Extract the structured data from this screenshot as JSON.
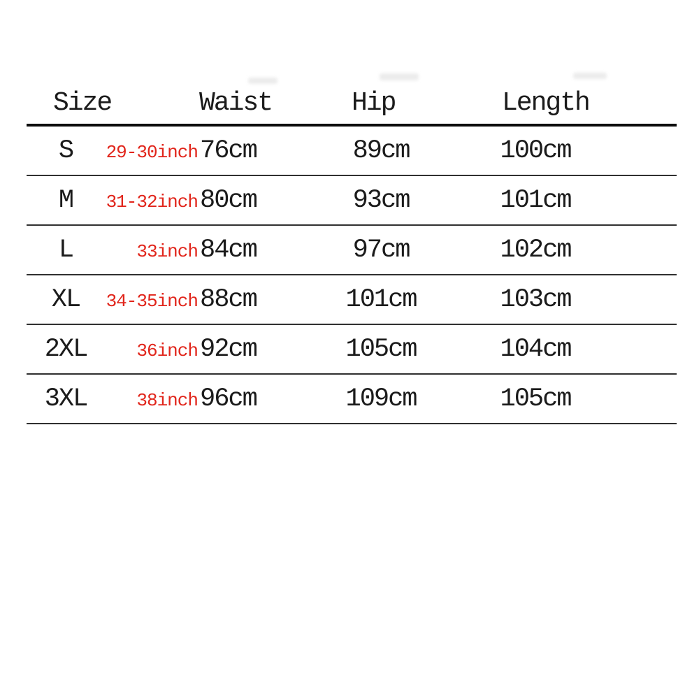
{
  "chart_data": {
    "type": "table",
    "title": "",
    "columns": [
      "Size",
      "Waist",
      "Hip",
      "Length"
    ],
    "rows": [
      {
        "size": "S",
        "waist_inch": "29-30inch",
        "waist_cm": "76cm",
        "hip": "89cm",
        "length": "100cm"
      },
      {
        "size": "M",
        "waist_inch": "31-32inch",
        "waist_cm": "80cm",
        "hip": "93cm",
        "length": "101cm"
      },
      {
        "size": "L",
        "waist_inch": "33inch",
        "waist_cm": "84cm",
        "hip": "97cm",
        "length": "102cm"
      },
      {
        "size": "XL",
        "waist_inch": "34-35inch",
        "waist_cm": "88cm",
        "hip": "101cm",
        "length": "103cm"
      },
      {
        "size": "2XL",
        "waist_inch": "36inch",
        "waist_cm": "92cm",
        "hip": "105cm",
        "length": "104cm"
      },
      {
        "size": "3XL",
        "waist_inch": "38inch",
        "waist_cm": "96cm",
        "hip": "109cm",
        "length": "105cm"
      }
    ],
    "colors": {
      "inch_text": "#e1251b",
      "body_text": "#1b1b1b",
      "header_rule": "#0d0d0d",
      "row_rule": "#303030",
      "background": "#ffffff"
    },
    "layout": {
      "grid": "horizontal rules only, no vertical rules",
      "legend": "none"
    }
  }
}
